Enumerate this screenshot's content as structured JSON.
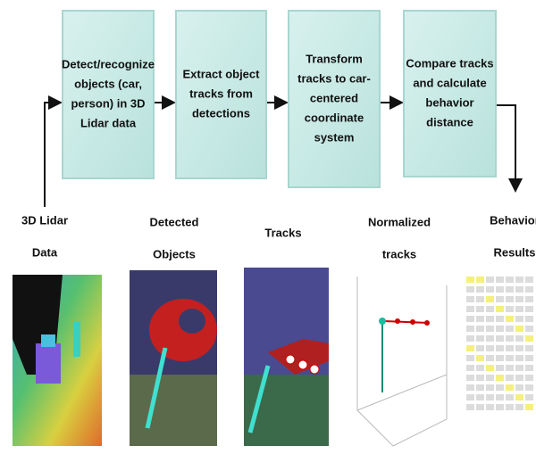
{
  "steps": [
    {
      "lines": [
        "Detect/recognize",
        "objects  (car,",
        "person) in 3D",
        "Lidar data"
      ]
    },
    {
      "lines": [
        "Extract object",
        "tracks from",
        "detections"
      ]
    },
    {
      "lines": [
        "Transform",
        "tracks to car-",
        "centered",
        "coordinate",
        "system"
      ]
    },
    {
      "lines": [
        "Compare tracks",
        "and calculate",
        "behavior",
        "distance"
      ]
    }
  ],
  "stages": [
    {
      "lines": [
        "3D Lidar",
        "Data"
      ]
    },
    {
      "lines": [
        "Detected",
        "Objects"
      ]
    },
    {
      "lines": [
        "Tracks"
      ]
    },
    {
      "lines": [
        "Normalized",
        "tracks"
      ]
    },
    {
      "lines": [
        "Behavior",
        "Results"
      ]
    }
  ]
}
